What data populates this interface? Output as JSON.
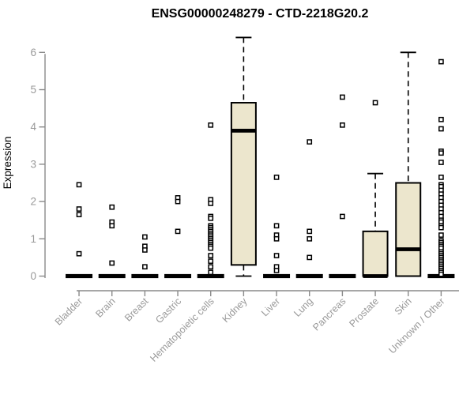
{
  "chart_data": {
    "type": "boxplot",
    "title": "ENSG00000248279 - CTD-2218G20.2",
    "ylabel": "Expression",
    "xlabel": "",
    "ylim": [
      0,
      6.5
    ],
    "yticks": [
      0,
      1,
      2,
      3,
      4,
      5,
      6
    ],
    "grid": false,
    "legend": null,
    "categories": [
      "Bladder",
      "Brain",
      "Breast",
      "Gastric",
      "Hematopoietic cells",
      "Kidney",
      "Liver",
      "Lung",
      "Pancreas",
      "Prostate",
      "Skin",
      "Unknown / Other"
    ],
    "series": [
      {
        "name": "Bladder",
        "q1": 0,
        "median": 0,
        "q3": 0,
        "whisker_low": 0,
        "whisker_high": 0,
        "outliers": [
          2.45,
          1.8,
          1.65,
          0.6
        ]
      },
      {
        "name": "Brain",
        "q1": 0,
        "median": 0,
        "q3": 0,
        "whisker_low": 0,
        "whisker_high": 0,
        "outliers": [
          1.85,
          1.45,
          1.35,
          0.35
        ]
      },
      {
        "name": "Breast",
        "q1": 0,
        "median": 0,
        "q3": 0,
        "whisker_low": 0,
        "whisker_high": 0,
        "outliers": [
          1.05,
          0.8,
          0.7,
          0.25
        ]
      },
      {
        "name": "Gastric",
        "q1": 0,
        "median": 0,
        "q3": 0,
        "whisker_low": 0,
        "whisker_high": 0,
        "outliers": [
          2.1,
          2.0,
          1.2
        ]
      },
      {
        "name": "Hematopoietic cells",
        "q1": 0,
        "median": 0,
        "q3": 0,
        "whisker_low": 0,
        "whisker_high": 0,
        "outliers": [
          4.05,
          2.05,
          1.95,
          1.6,
          1.55,
          1.35,
          1.3,
          1.25,
          1.2,
          1.15,
          1.1,
          1.05,
          1.0,
          0.95,
          0.9,
          0.85,
          0.8,
          0.75,
          0.55,
          0.4,
          0.25,
          0.1
        ]
      },
      {
        "name": "Kidney",
        "q1": 0.3,
        "median": 3.9,
        "q3": 4.65,
        "whisker_low": 0,
        "whisker_high": 6.4,
        "outliers": []
      },
      {
        "name": "Liver",
        "q1": 0,
        "median": 0,
        "q3": 0,
        "whisker_low": 0,
        "whisker_high": 0,
        "outliers": [
          2.65,
          1.35,
          1.1,
          1.0,
          0.55,
          0.25,
          0.15
        ]
      },
      {
        "name": "Lung",
        "q1": 0,
        "median": 0,
        "q3": 0,
        "whisker_low": 0,
        "whisker_high": 0,
        "outliers": [
          3.6,
          1.2,
          1.0,
          0.5
        ]
      },
      {
        "name": "Pancreas",
        "q1": 0,
        "median": 0,
        "q3": 0,
        "whisker_low": 0,
        "whisker_high": 0,
        "outliers": [
          4.8,
          4.05,
          1.6
        ]
      },
      {
        "name": "Prostate",
        "q1": 0,
        "median": 0,
        "q3": 1.2,
        "whisker_low": 0,
        "whisker_high": 2.75,
        "outliers": [
          4.65
        ]
      },
      {
        "name": "Skin",
        "q1": 0,
        "median": 0.72,
        "q3": 2.5,
        "whisker_low": 0,
        "whisker_high": 6.0,
        "outliers": []
      },
      {
        "name": "Unknown / Other",
        "q1": 0,
        "median": 0,
        "q3": 0,
        "whisker_low": 0,
        "whisker_high": 0,
        "outliers": [
          5.75,
          4.2,
          3.95,
          3.35,
          3.3,
          3.05,
          2.65,
          2.45,
          2.4,
          2.3,
          2.2,
          2.1,
          2.0,
          1.9,
          1.8,
          1.7,
          1.6,
          1.5,
          1.45,
          1.35,
          1.3,
          1.1,
          0.95,
          0.9,
          0.85,
          0.8,
          0.75,
          0.65,
          0.6,
          0.55,
          0.5,
          0.45,
          0.4,
          0.35,
          0.3,
          0.25,
          0.2,
          0.15,
          0.1,
          0.05
        ]
      }
    ],
    "colors": {
      "box_fill": "#ECE6CD",
      "box_stroke": "#000000",
      "axis": "#8A8A8A",
      "tick_label": "#999999",
      "title": "#000000",
      "background": "#FFFFFF"
    }
  }
}
